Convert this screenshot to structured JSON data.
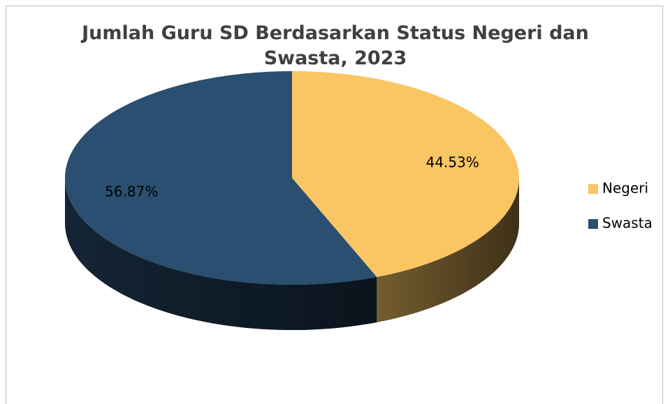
{
  "chart_data": {
    "type": "pie",
    "title": "Jumlah Guru SD Berdasarkan Status Negeri dan Swasta, 2023",
    "categories": [
      "Negeri",
      "Swasta"
    ],
    "values": [
      44.53,
      56.87
    ],
    "value_labels": [
      "44.53%",
      "56.87%"
    ],
    "colors": [
      "#fac664",
      "#2a4f70"
    ],
    "legend": "right"
  }
}
